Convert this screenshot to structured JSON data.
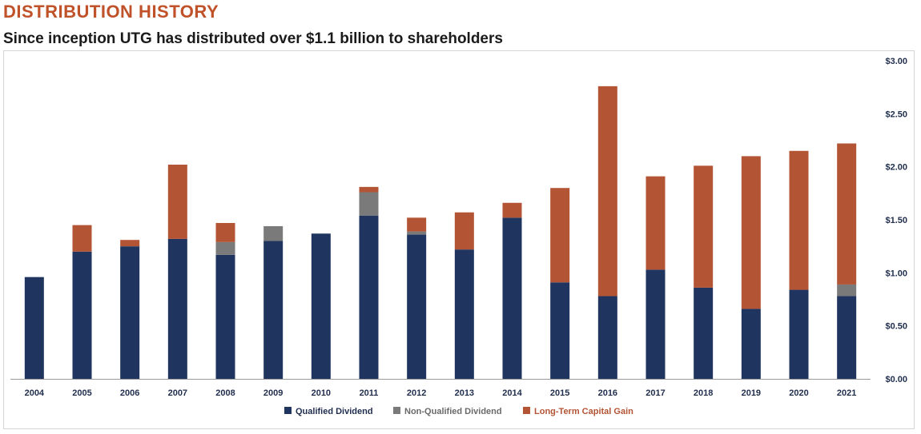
{
  "header": {
    "title": "DISTRIBUTION HISTORY",
    "subtitle": "Since inception UTG has distributed over $1.1 billion to shareholders"
  },
  "colors": {
    "qualified": "#1f3560",
    "non_qualified": "#7a7a7a",
    "capital_gain": "#b35435",
    "title_accent": "#c0522a",
    "tick_text": "#1f2d4d"
  },
  "chart_data": {
    "type": "bar",
    "stacked": true,
    "categories": [
      "2004",
      "2005",
      "2006",
      "2007",
      "2008",
      "2009",
      "2010",
      "2011",
      "2012",
      "2013",
      "2014",
      "2015",
      "2016",
      "2017",
      "2018",
      "2019",
      "2020",
      "2021"
    ],
    "series": [
      {
        "name": "Qualified Dividend",
        "color": "#1f3560",
        "values": [
          0.96,
          1.2,
          1.25,
          1.32,
          1.17,
          1.3,
          1.37,
          1.54,
          1.36,
          1.22,
          1.52,
          0.91,
          0.78,
          1.03,
          0.86,
          0.66,
          0.84,
          0.78
        ]
      },
      {
        "name": "Non-Qualified Dividend",
        "color": "#7a7a7a",
        "values": [
          0,
          0,
          0,
          0,
          0.12,
          0.14,
          0,
          0.22,
          0.03,
          0,
          0,
          0,
          0,
          0,
          0,
          0,
          0,
          0.11
        ]
      },
      {
        "name": "Long-Term Capital Gain",
        "color": "#b35435",
        "values": [
          0,
          0.25,
          0.06,
          0.7,
          0.18,
          0,
          0,
          0.05,
          0.13,
          0.35,
          0.14,
          0.89,
          1.98,
          0.88,
          1.15,
          1.44,
          1.31,
          1.33
        ]
      }
    ],
    "y_ticks": [
      "$3.00",
      "$2.50",
      "$2.00",
      "$1.50",
      "$1.00",
      "$0.50",
      "$0.00"
    ],
    "y_tick_values": [
      3.0,
      2.5,
      2.0,
      1.5,
      1.0,
      0.5,
      0.0
    ],
    "ylim": [
      0,
      3.0
    ],
    "y_axis_side": "right",
    "legend_position": "bottom-center",
    "grid": false
  }
}
